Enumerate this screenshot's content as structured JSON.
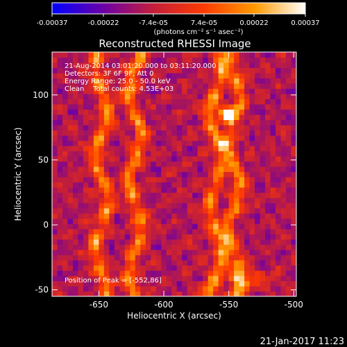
{
  "chart_data": {
    "type": "heatmap",
    "title": "Reconstructed RHESSI Image",
    "xlabel": "Heliocentric X (arcsec)",
    "ylabel": "Heliocentric Y (arcsec)",
    "xlim": [
      -686,
      -498
    ],
    "ylim": [
      -55,
      133
    ],
    "x_ticks": [
      "-650",
      "-600",
      "-550",
      "-500"
    ],
    "x_tick_values": [
      -650,
      -600,
      -550,
      -500
    ],
    "y_ticks": [
      "100",
      "50",
      "0",
      "-50"
    ],
    "y_tick_values": [
      100,
      50,
      0,
      -50
    ],
    "colorbar": {
      "ticks": [
        "-0.00037",
        "-0.00022",
        "-7.4e-05",
        "7.4e-05",
        "0.00022",
        "0.00037"
      ],
      "tick_values": [
        -0.00037,
        -0.00022,
        -7.4e-05,
        7.4e-05,
        0.00022,
        0.00037
      ],
      "range": [
        -0.00037,
        0.00037
      ],
      "label": "(photons cm⁻² s⁻¹ asec⁻²)",
      "colors": [
        "#0000ff",
        "#6a00a8",
        "#c41e3a",
        "#ff3b00",
        "#ff9a00",
        "#ffffff"
      ]
    },
    "annotations": [
      "21-Aug-2014 03:01:20.000 to 03:11:20.000",
      "Detectors: 3F 6F 9F, Att 0",
      "Energy Range: 25.0 - 50.0 keV",
      "Clean    Total counts: 4.53E+03"
    ],
    "peak_label": "Position of Peak = [-552,86]",
    "peak": [
      -552,
      86
    ],
    "bright_ridges_x": [
      -648,
      -622,
      -560,
      -546
    ]
  },
  "footer": {
    "timestamp": "21-Jan-2017 11:23"
  }
}
